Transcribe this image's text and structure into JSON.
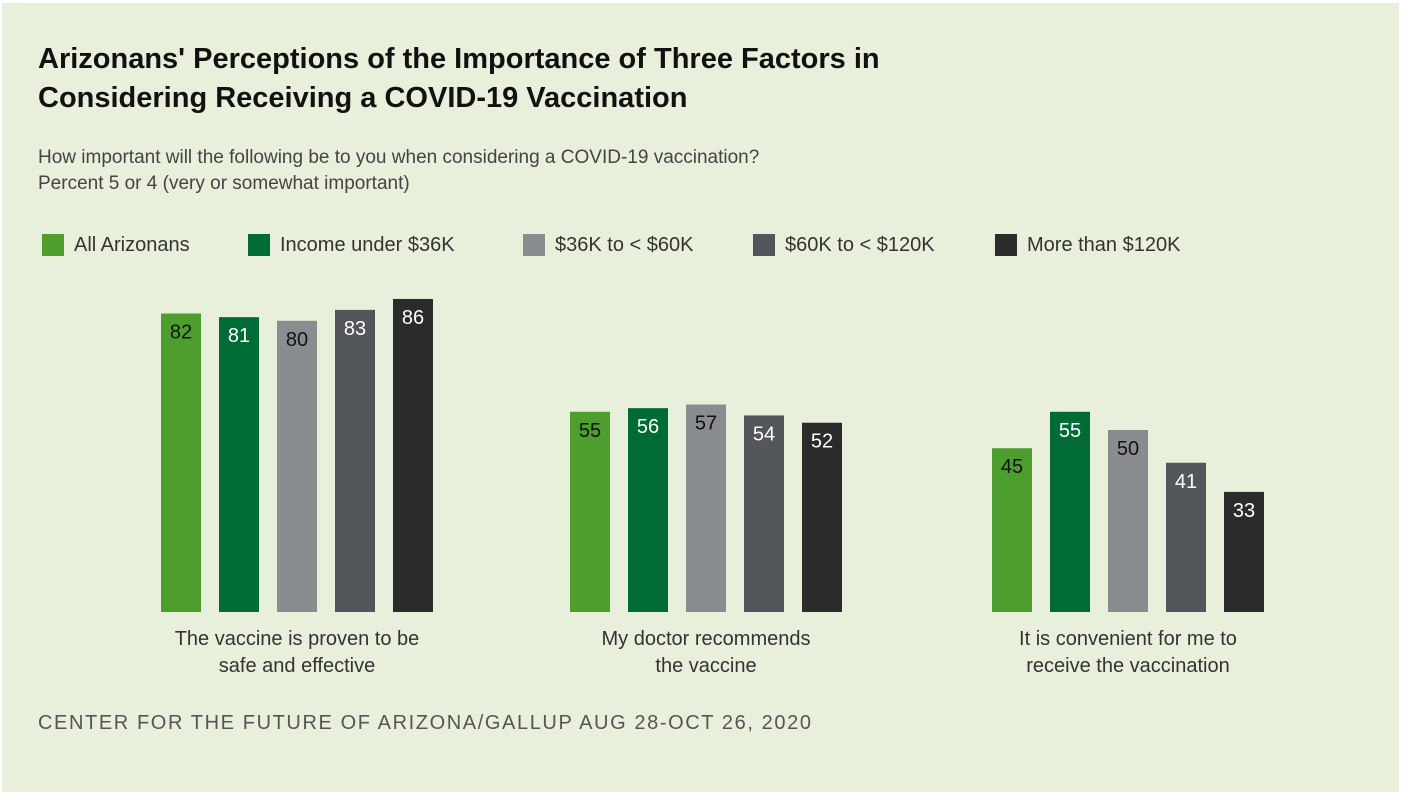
{
  "chart_data": {
    "type": "bar",
    "title": "Arizonans' Perceptions of the Importance of Three Factors in Considering Receiving a COVID-19 Vaccination",
    "title_lines": [
      "Arizonans' Perceptions of the Importance of Three Factors in",
      "Considering Receiving a COVID-19 Vaccination"
    ],
    "subtitle_lines": [
      "How important will the following be to you when considering a COVID-19 vaccination?",
      "Percent 5 or 4 (very or somewhat important)"
    ],
    "categories": [
      {
        "lines": [
          "The vaccine is proven to be",
          "safe and effective"
        ]
      },
      {
        "lines": [
          "My doctor recommends",
          "the vaccine"
        ]
      },
      {
        "lines": [
          "It is convenient for me to",
          "receive the vaccination"
        ]
      }
    ],
    "series": [
      {
        "name": "All Arizonans",
        "color": "#4e9e2f",
        "label_color": "#111111",
        "values": [
          82,
          55,
          45
        ]
      },
      {
        "name": "Income under $36K",
        "color": "#006b35",
        "label_color": "#ffffff",
        "values": [
          81,
          56,
          55
        ]
      },
      {
        "name": "$36K to < $60K",
        "color": "#8a8d90",
        "label_color": "#111111",
        "values": [
          80,
          57,
          50
        ]
      },
      {
        "name": "$60K to < $120K",
        "color": "#53565a",
        "label_color": "#ffffff",
        "values": [
          83,
          54,
          41
        ]
      },
      {
        "name": "More than $120K",
        "color": "#2b2b2b",
        "label_color": "#ffffff",
        "values": [
          86,
          52,
          33
        ]
      }
    ],
    "ylim": [
      0,
      100
    ],
    "xlabel": "",
    "ylabel": "",
    "grid": false,
    "legend_position": "top-left",
    "source": "CENTER FOR THE FUTURE OF ARIZONA/GALLUP AUG 28-OCT 26, 2020"
  }
}
